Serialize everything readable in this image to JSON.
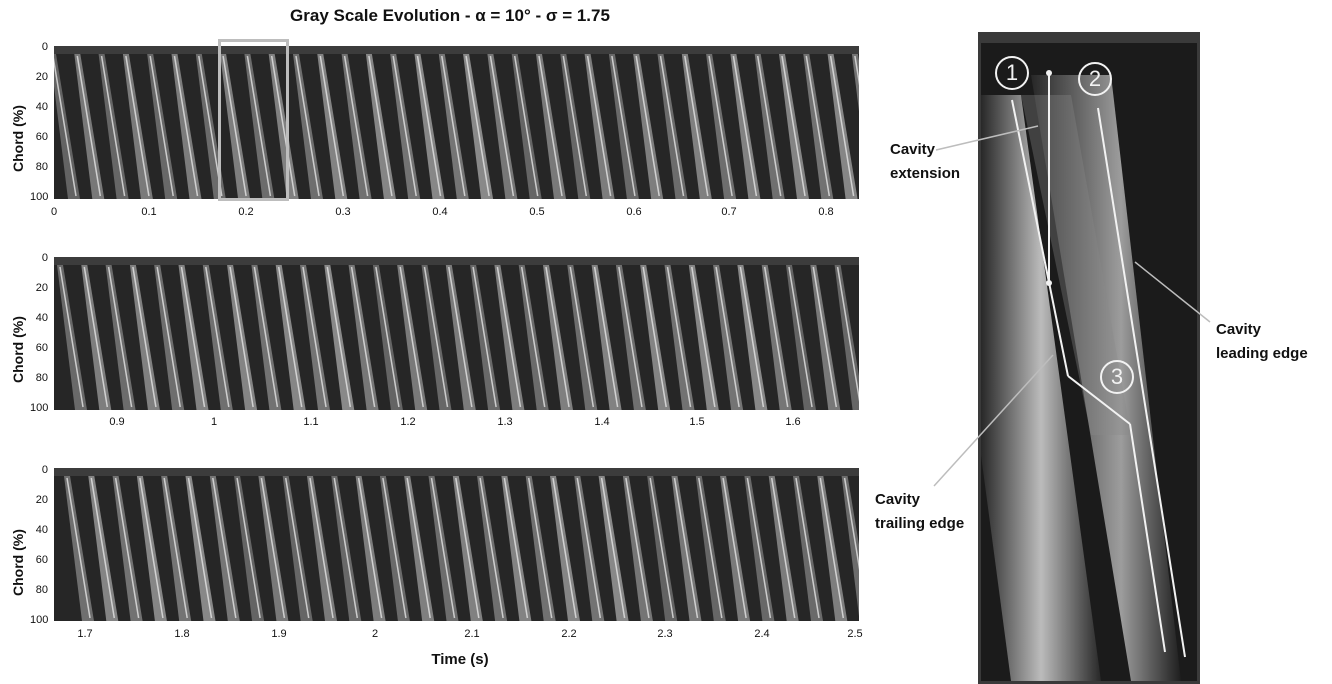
{
  "title": "Gray Scale Evolution - α = 10° - σ = 1.75",
  "y_axis_label": "Chord (%)",
  "y_ticks": [
    "0",
    "20",
    "40",
    "60",
    "80",
    "100"
  ],
  "x_axis_label": "Time (s)",
  "strips": [
    {
      "x_ticks": [
        "0",
        "0.1",
        "0.2",
        "0.3",
        "0.4",
        "0.5",
        "0.6",
        "0.7",
        "0.8"
      ]
    },
    {
      "x_ticks": [
        "0.9",
        "1",
        "1.1",
        "1.2",
        "1.3",
        "1.4",
        "1.5",
        "1.6"
      ]
    },
    {
      "x_ticks": [
        "1.7",
        "1.8",
        "1.9",
        "2",
        "2.1",
        "2.2",
        "2.3",
        "2.4",
        "2.5"
      ]
    }
  ],
  "zoom_markers": [
    "1",
    "2",
    "3"
  ],
  "callouts": {
    "extension": [
      "Cavity",
      "extension"
    ],
    "trailing": [
      "Cavity",
      "trailing edge"
    ],
    "leading": [
      "Cavity",
      "leading edge"
    ]
  },
  "colors": {
    "background": "#1e1e1e",
    "streak": "#e6e6e6",
    "annotation": "#f2f2f2",
    "selection_box": "#bdbdbd"
  }
}
